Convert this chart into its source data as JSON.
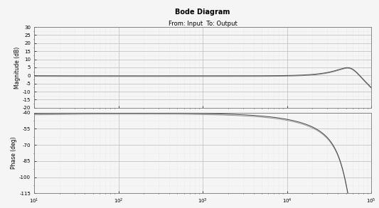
{
  "title": "Bode Diagram",
  "subtitle": "From: Input  To: Output",
  "freq_range": [
    10,
    100000
  ],
  "mag_ylim": [
    -20,
    30
  ],
  "mag_yticks": [
    30,
    25,
    20,
    15,
    10,
    5,
    0,
    -5,
    -10,
    -15,
    -20
  ],
  "mag_ylabel": "Magnitude (dB)",
  "phase_ylim": [
    -115,
    -40
  ],
  "phase_yticks": [
    -40,
    -55,
    -70,
    -85,
    -100,
    -115
  ],
  "phase_ylabel": "Phase (deg)",
  "line_color1": "#444444",
  "line_color2": "#999999",
  "background_color": "#f5f5f5",
  "grid_color_major": "#bbbbbb",
  "grid_color_minor": "#dddddd",
  "title_fontsize": 7,
  "subtitle_fontsize": 6,
  "axis_label_fontsize": 5.5,
  "tick_fontsize": 5
}
